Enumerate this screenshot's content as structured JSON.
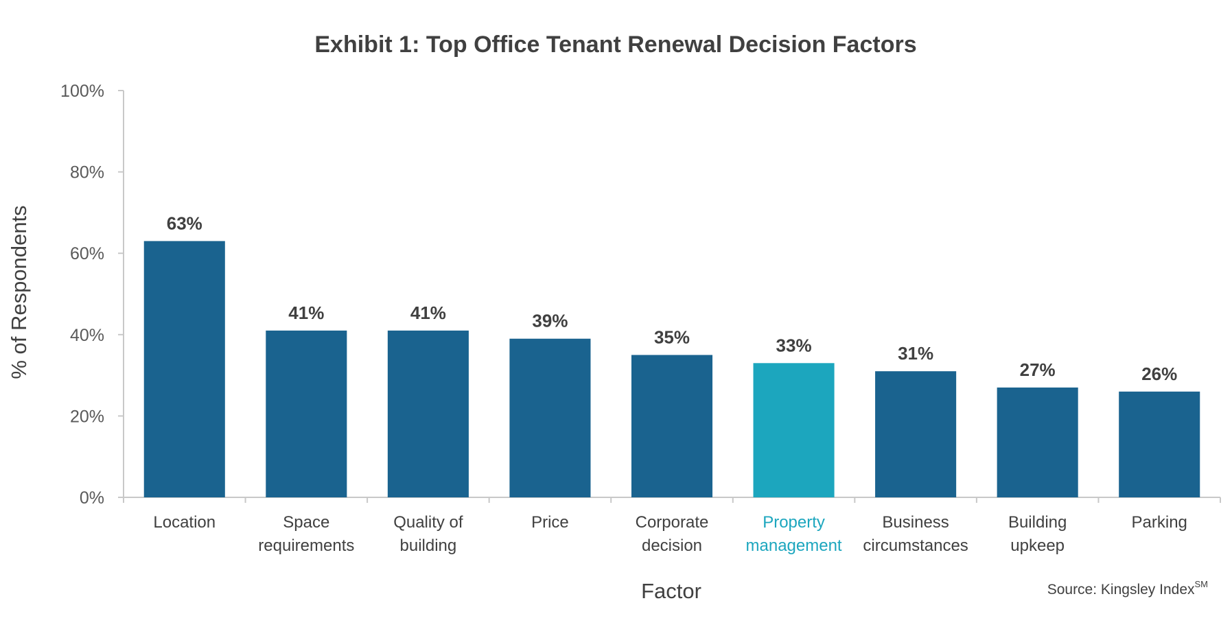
{
  "chart_data": {
    "type": "bar",
    "title": "Exhibit 1: Top Office Tenant Renewal Decision Factors",
    "xlabel": "Factor",
    "ylabel": "% of Respondents",
    "ylim": [
      0,
      100
    ],
    "yticks": [
      "0%",
      "20%",
      "40%",
      "60%",
      "80%",
      "100%"
    ],
    "categories": [
      [
        "Location"
      ],
      [
        "Space",
        "requirements"
      ],
      [
        "Quality of",
        "building"
      ],
      [
        "Price"
      ],
      [
        "Corporate",
        "decision"
      ],
      [
        "Property",
        "management"
      ],
      [
        "Business",
        "circumstances"
      ],
      [
        "Building",
        "upkeep"
      ],
      [
        "Parking"
      ]
    ],
    "values": [
      63,
      41,
      41,
      39,
      35,
      33,
      31,
      27,
      26
    ],
    "value_labels": [
      "63%",
      "41%",
      "41%",
      "39%",
      "35%",
      "33%",
      "31%",
      "27%",
      "26%"
    ],
    "highlight_index": 5,
    "grid": false,
    "source": {
      "text": "Source: Kingsley Index",
      "superscript": "SM"
    },
    "colors": {
      "bar": "#1a638f",
      "highlight_bar": "#1ca6be",
      "highlight_label": "#1ca6be",
      "text": "#404040",
      "axis": "#c8c8c8"
    }
  }
}
